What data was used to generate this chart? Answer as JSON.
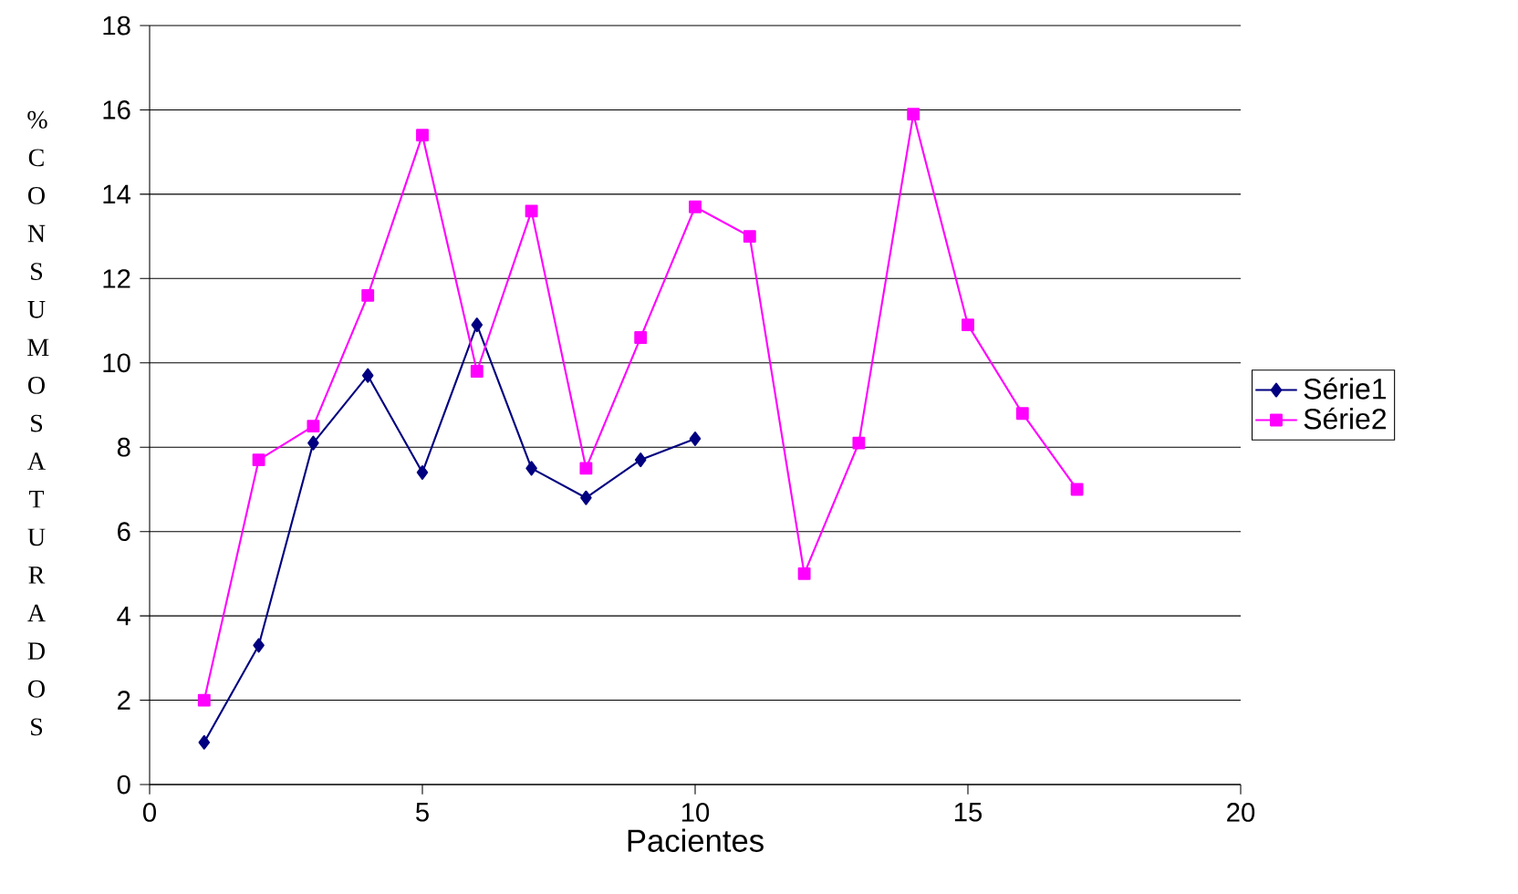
{
  "chart_data": {
    "type": "line",
    "xlabel": "Pacientes",
    "ylabel": "% CONSUMO SATURADOS",
    "xlim": [
      0,
      20
    ],
    "xticks": [
      0,
      5,
      10,
      15,
      20
    ],
    "ylim": [
      0,
      18
    ],
    "yticks": [
      0,
      2,
      4,
      6,
      8,
      10,
      12,
      14,
      16,
      18
    ],
    "grid": "y",
    "legend": "right",
    "series": [
      {
        "name": "Série1",
        "color": "#000080",
        "marker": "diamond",
        "x": [
          1,
          2,
          3,
          4,
          5,
          6,
          7,
          8,
          9,
          10
        ],
        "values": [
          1.0,
          3.3,
          8.1,
          9.7,
          7.4,
          10.9,
          7.5,
          6.8,
          7.7,
          8.2
        ]
      },
      {
        "name": "Série2",
        "color": "#ff00ff",
        "marker": "square",
        "x": [
          1,
          2,
          3,
          4,
          5,
          6,
          7,
          8,
          9,
          10,
          11,
          12,
          13,
          14,
          15,
          16,
          17
        ],
        "values": [
          2.0,
          7.7,
          8.5,
          11.6,
          15.4,
          9.8,
          13.6,
          7.5,
          10.6,
          13.7,
          13.0,
          5.0,
          8.1,
          15.9,
          10.9,
          8.8,
          7.0
        ]
      }
    ]
  }
}
